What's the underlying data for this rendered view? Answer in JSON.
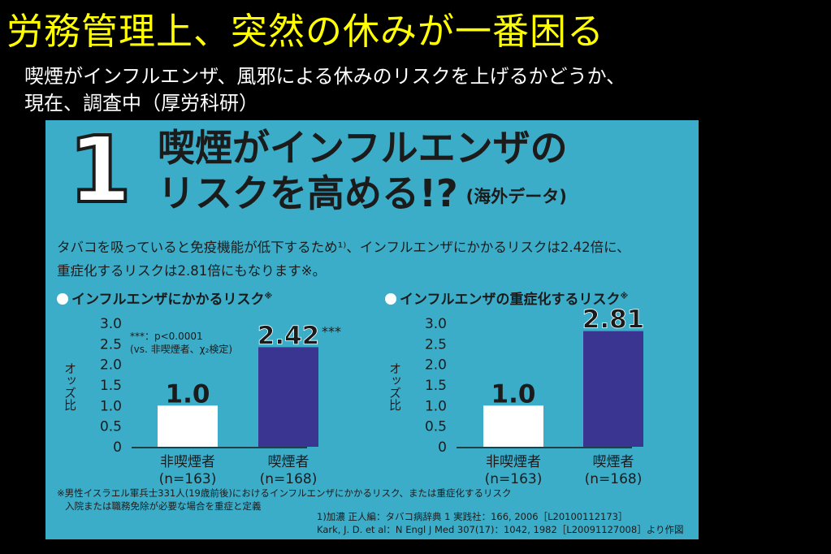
{
  "slide": {
    "title": "労務管理上、突然の休みが一番困る",
    "subtitle_line1": "喫煙がインフルエンザ、風邪による休みのリスクを上げるかどうか、",
    "subtitle_line2": "現在、調査中（厚労科研）"
  },
  "panel": {
    "number": "1",
    "title_line1": "喫煙がインフルエンザの",
    "title_line2": "リスクを高める!?",
    "title_note": "(海外データ)",
    "desc_line1": "タバコを吸っていると免疫機能が低下するため¹⁾、インフルエンザにかかるリスクは2.42倍に、",
    "desc_line2": "重症化するリスクは2.81倍にもなります※。",
    "footnote_line1": "※男性イスラエル軍兵士331人(19歳前後)におけるインフルエンザにかかるリスク、または重症化するリスク",
    "footnote_line2": "入院または職務免除が必要な場合を重症と定義",
    "reference_line1": "1)加濃 正人編：タバコ病辞典 1 実践社：166, 2006［L20100112173］",
    "reference_line2": "Kark, J. D. et al：N Engl J Med 307(17)：1042, 1982［L20091127008］より作図"
  },
  "colors": {
    "panel_bg": "#3cadc9",
    "non_smoker_bar": "#ffffff",
    "smoker_bar": "#3b3592",
    "title_yellow": "#ffff00"
  },
  "chart_data": [
    {
      "type": "bar",
      "title": "インフルエンザにかかるリスク",
      "title_mark": "※",
      "ylabel": "オッズ比",
      "ylim": [
        0,
        3.0
      ],
      "yticks": [
        "0",
        "0.5",
        "1.0",
        "1.5",
        "2.0",
        "2.5",
        "3.0"
      ],
      "categories": [
        "非喫煙者",
        "喫煙者"
      ],
      "category_sublabels": [
        "(n=163)",
        "(n=168)"
      ],
      "values": [
        1.0,
        2.42
      ],
      "value_labels": [
        "1.0",
        "2.42"
      ],
      "significance": "***",
      "annotation_line1": "***：p<0.0001",
      "annotation_line2": "(vs. 非喫煙者、χ₂検定)"
    },
    {
      "type": "bar",
      "title": "インフルエンザの重症化するリスク",
      "title_mark": "※",
      "ylabel": "オッズ比",
      "ylim": [
        0,
        3.0
      ],
      "yticks": [
        "0",
        "0.5",
        "1.0",
        "1.5",
        "2.0",
        "2.5",
        "3.0"
      ],
      "categories": [
        "非喫煙者",
        "喫煙者"
      ],
      "category_sublabels": [
        "(n=163)",
        "(n=168)"
      ],
      "values": [
        1.0,
        2.81
      ],
      "value_labels": [
        "1.0",
        "2.81"
      ]
    }
  ]
}
